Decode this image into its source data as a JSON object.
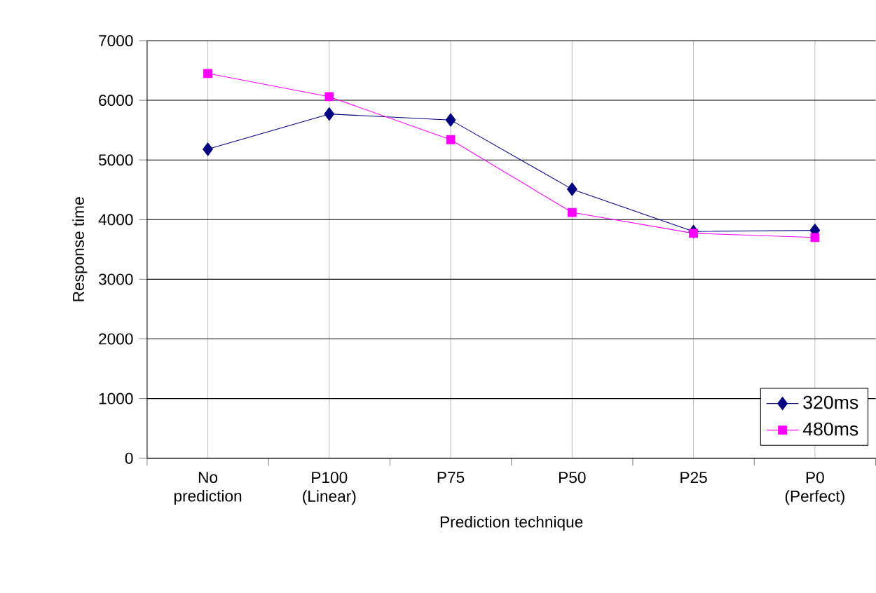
{
  "chart_data": {
    "type": "line",
    "xlabel": "Prediction technique",
    "ylabel": "Response time",
    "categories": [
      "No prediction",
      "P100 (Linear)",
      "P75",
      "P50",
      "P25",
      "P0 (Perfect)"
    ],
    "series": [
      {
        "name": "320ms",
        "color": "#000080",
        "marker": "diamond",
        "values": [
          5180,
          5770,
          5670,
          4510,
          3800,
          3820
        ]
      },
      {
        "name": "480ms",
        "color": "#ff00ff",
        "marker": "square",
        "values": [
          6450,
          6060,
          5340,
          4120,
          3770,
          3700
        ]
      }
    ],
    "ylim": [
      0,
      7000
    ],
    "yticks": [
      0,
      1000,
      2000,
      3000,
      4000,
      5000,
      6000,
      7000
    ],
    "grid": true,
    "legend": "bottom right",
    "line_style": "solid"
  }
}
